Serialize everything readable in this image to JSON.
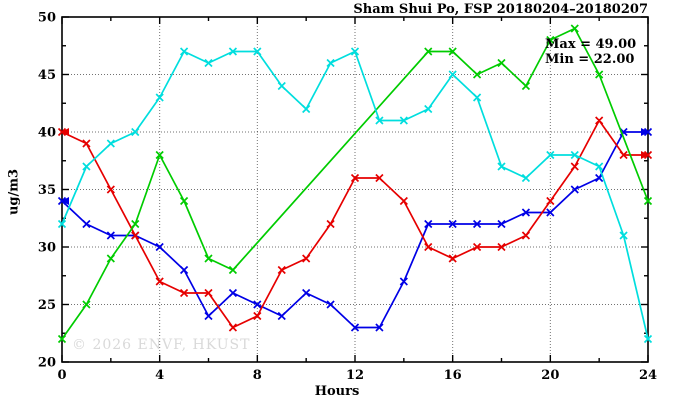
{
  "figure": {
    "title": "Sham Shui Po, FSP 20180204–20180207",
    "watermark": "© 2026 ENVF, HKUST",
    "annotation_max": "Max = 49.00",
    "annotation_min": "Min = 22.00"
  },
  "chart_data": {
    "type": "line",
    "title": "Sham Shui Po, FSP 20180204–20180207",
    "xlabel": "Hours",
    "ylabel": "ug/m3",
    "xlim": [
      0,
      24
    ],
    "ylim": [
      20,
      50
    ],
    "grid": true,
    "legend": "none",
    "x_ticks_major": [
      0,
      4,
      8,
      12,
      16,
      20,
      24
    ],
    "x_ticks_minor": [
      2,
      6,
      10,
      14,
      18,
      22
    ],
    "y_ticks_major": [
      20,
      25,
      30,
      35,
      40,
      45,
      50
    ],
    "y_ticks_minor": [
      22.5,
      27.5,
      32.5,
      37.5,
      42.5,
      47.5
    ],
    "grid_x_at": [
      4,
      8,
      12,
      16,
      20
    ],
    "grid_y_at": [
      25,
      30,
      35,
      40,
      45
    ],
    "annotations": [
      "Max = 49.00",
      "Min = 22.00"
    ],
    "marker": "x",
    "x": [
      0,
      1,
      2,
      3,
      4,
      5,
      6,
      7,
      8,
      9,
      10,
      11,
      12,
      13,
      14,
      15,
      16,
      17,
      18,
      19,
      20,
      21,
      22,
      23,
      24
    ],
    "series": [
      {
        "name": "blue-series",
        "color": "#0000e6",
        "arrow_left": true,
        "arrow_right": true,
        "values": [
          34,
          32,
          31,
          31,
          30,
          28,
          24,
          26,
          25,
          24,
          26,
          25,
          23,
          23,
          27,
          32,
          32,
          32,
          32,
          33,
          33,
          35,
          36,
          40,
          40
        ]
      },
      {
        "name": "red-series",
        "color": "#e60000",
        "arrow_left": true,
        "arrow_right": true,
        "values": [
          40,
          39,
          35,
          31,
          27,
          26,
          26,
          23,
          24,
          28,
          29,
          32,
          36,
          36,
          34,
          30,
          29,
          30,
          30,
          31,
          34,
          37,
          41,
          38,
          38
        ]
      },
      {
        "name": "green-series",
        "color": "#00cc00",
        "arrow_left": false,
        "arrow_right": false,
        "values": [
          22,
          25,
          29,
          32,
          38,
          34,
          29,
          28,
          null,
          null,
          null,
          null,
          null,
          null,
          null,
          47,
          47,
          45,
          46,
          44,
          48,
          49,
          45,
          null,
          34
        ]
      },
      {
        "name": "cyan-series",
        "color": "#00dede",
        "arrow_left": false,
        "arrow_right": false,
        "values": [
          32,
          37,
          39,
          40,
          43,
          47,
          46,
          47,
          47,
          44,
          42,
          46,
          47,
          41,
          41,
          42,
          45,
          43,
          37,
          36,
          38,
          38,
          37,
          31,
          22
        ]
      }
    ]
  }
}
